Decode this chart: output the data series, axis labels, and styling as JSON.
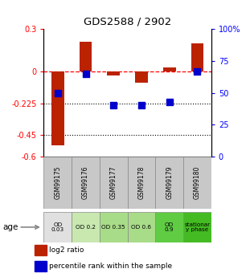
{
  "title": "GDS2588 / 2902",
  "samples": [
    "GSM99175",
    "GSM99176",
    "GSM99177",
    "GSM99178",
    "GSM99179",
    "GSM99180"
  ],
  "log2_ratio": [
    -0.52,
    0.21,
    -0.03,
    -0.08,
    0.03,
    0.2
  ],
  "percentile_rank_pct": [
    50,
    65,
    40,
    40,
    43,
    67
  ],
  "ylim_left": [
    -0.6,
    0.3
  ],
  "left_ticks": [
    0.3,
    0,
    -0.225,
    -0.45,
    -0.6
  ],
  "right_ticks_pct": [
    100,
    75,
    50,
    25,
    0
  ],
  "right_tick_labels": [
    "100%",
    "75",
    "50",
    "25",
    "0"
  ],
  "bar_color": "#bb2200",
  "dot_color": "#0000cc",
  "sample_bg_color": "#c8c8c8",
  "age_labels": [
    "OD\n0.03",
    "OD 0.2",
    "OD 0.35",
    "OD 0.6",
    "OD\n0.9",
    "stationar\ny phase"
  ],
  "age_bg_colors": [
    "#e0e0e0",
    "#c8e8b0",
    "#a8dc88",
    "#a8dc88",
    "#60cc44",
    "#44bb22"
  ]
}
